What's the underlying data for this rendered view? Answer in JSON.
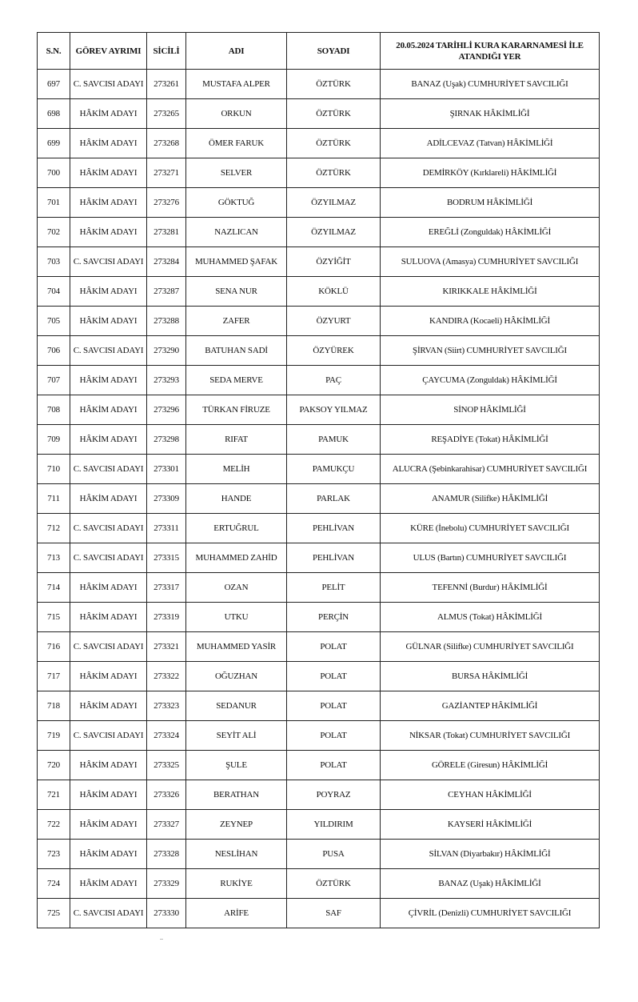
{
  "table": {
    "headers": [
      "S.N.",
      "GÖREV AYRIMI",
      "SİCİLİ",
      "ADI",
      "SOYADI",
      "20.05.2024 TARİHLİ KURA KARARNAMESİ İLE ATANDIĞI YER"
    ],
    "rows": [
      [
        "697",
        "C. SAVCISI ADAYI",
        "273261",
        "MUSTAFA ALPER",
        "ÖZTÜRK",
        "BANAZ (Uşak) CUMHURİYET SAVCILIĞI"
      ],
      [
        "698",
        "HÂKİM ADAYI",
        "273265",
        "ORKUN",
        "ÖZTÜRK",
        "ŞIRNAK HÂKİMLİĞİ"
      ],
      [
        "699",
        "HÂKİM ADAYI",
        "273268",
        "ÖMER FARUK",
        "ÖZTÜRK",
        "ADİLCEVAZ (Tatvan) HÂKİMLİĞİ"
      ],
      [
        "700",
        "HÂKİM ADAYI",
        "273271",
        "SELVER",
        "ÖZTÜRK",
        "DEMİRKÖY (Kırklareli) HÂKİMLİĞİ"
      ],
      [
        "701",
        "HÂKİM ADAYI",
        "273276",
        "GÖKTUĞ",
        "ÖZYILMAZ",
        "BODRUM HÂKİMLİĞİ"
      ],
      [
        "702",
        "HÂKİM ADAYI",
        "273281",
        "NAZLICAN",
        "ÖZYILMAZ",
        "EREĞLİ (Zonguldak) HÂKİMLİĞİ"
      ],
      [
        "703",
        "C. SAVCISI ADAYI",
        "273284",
        "MUHAMMED ŞAFAK",
        "ÖZYİĞİT",
        "SULUOVA (Amasya) CUMHURİYET SAVCILIĞI"
      ],
      [
        "704",
        "HÂKİM ADAYI",
        "273287",
        "SENA NUR",
        "KÖKLÜ",
        "KIRIKKALE HÂKİMLİĞİ"
      ],
      [
        "705",
        "HÂKİM ADAYI",
        "273288",
        "ZAFER",
        "ÖZYURT",
        "KANDIRA (Kocaeli) HÂKİMLİĞİ"
      ],
      [
        "706",
        "C. SAVCISI ADAYI",
        "273290",
        "BATUHAN SADİ",
        "ÖZYÜREK",
        "ŞİRVAN (Siirt) CUMHURİYET SAVCILIĞI"
      ],
      [
        "707",
        "HÂKİM ADAYI",
        "273293",
        "SEDA MERVE",
        "PAÇ",
        "ÇAYCUMA (Zonguldak) HÂKİMLİĞİ"
      ],
      [
        "708",
        "HÂKİM ADAYI",
        "273296",
        "TÜRKAN FİRUZE",
        "PAKSOY YILMAZ",
        "SİNOP HÂKİMLİĞİ"
      ],
      [
        "709",
        "HÂKİM ADAYI",
        "273298",
        "RIFAT",
        "PAMUK",
        "REŞADİYE (Tokat) HÂKİMLİĞİ"
      ],
      [
        "710",
        "C. SAVCISI ADAYI",
        "273301",
        "MELİH",
        "PAMUKÇU",
        "ALUCRA (Şebinkarahisar) CUMHURİYET SAVCILIĞI"
      ],
      [
        "711",
        "HÂKİM ADAYI",
        "273309",
        "HANDE",
        "PARLAK",
        "ANAMUR (Silifke) HÂKİMLİĞİ"
      ],
      [
        "712",
        "C. SAVCISI ADAYI",
        "273311",
        "ERTUĞRUL",
        "PEHLİVAN",
        "KÜRE (İnebolu) CUMHURİYET SAVCILIĞI"
      ],
      [
        "713",
        "C. SAVCISI ADAYI",
        "273315",
        "MUHAMMED ZAHİD",
        "PEHLİVAN",
        "ULUS (Bartın) CUMHURİYET SAVCILIĞI"
      ],
      [
        "714",
        "HÂKİM ADAYI",
        "273317",
        "OZAN",
        "PELİT",
        "TEFENNİ (Burdur) HÂKİMLİĞİ"
      ],
      [
        "715",
        "HÂKİM ADAYI",
        "273319",
        "UTKU",
        "PERÇİN",
        "ALMUS (Tokat) HÂKİMLİĞİ"
      ],
      [
        "716",
        "C. SAVCISI ADAYI",
        "273321",
        "MUHAMMED YASİR",
        "POLAT",
        "GÜLNAR (Silifke) CUMHURİYET SAVCILIĞI"
      ],
      [
        "717",
        "HÂKİM ADAYI",
        "273322",
        "OĞUZHAN",
        "POLAT",
        "BURSA HÂKİMLİĞİ"
      ],
      [
        "718",
        "HÂKİM ADAYI",
        "273323",
        "SEDANUR",
        "POLAT",
        "GAZİANTEP HÂKİMLİĞİ"
      ],
      [
        "719",
        "C. SAVCISI ADAYI",
        "273324",
        "SEYİT ALİ",
        "POLAT",
        "NİKSAR (Tokat) CUMHURİYET SAVCILIĞI"
      ],
      [
        "720",
        "HÂKİM ADAYI",
        "273325",
        "ŞULE",
        "POLAT",
        "GÖRELE (Giresun) HÂKİMLİĞİ"
      ],
      [
        "721",
        "HÂKİM ADAYI",
        "273326",
        "BERATHAN",
        "POYRAZ",
        "CEYHAN HÂKİMLİĞİ"
      ],
      [
        "722",
        "HÂKİM ADAYI",
        "273327",
        "ZEYNEP",
        "YILDIRIM",
        "KAYSERİ HÂKİMLİĞİ"
      ],
      [
        "723",
        "HÂKİM ADAYI",
        "273328",
        "NESLİHAN",
        "PUSA",
        "SİLVAN (Diyarbakır) HÂKİMLİĞİ"
      ],
      [
        "724",
        "HÂKİM ADAYI",
        "273329",
        "RUKİYE",
        "ÖZTÜRK",
        "BANAZ (Uşak) HÂKİMLİĞİ"
      ],
      [
        "725",
        "C. SAVCISI ADAYI",
        "273330",
        "ARİFE",
        "SAF",
        "ÇİVRİL (Denizli) CUMHURİYET SAVCILIĞI"
      ]
    ]
  }
}
